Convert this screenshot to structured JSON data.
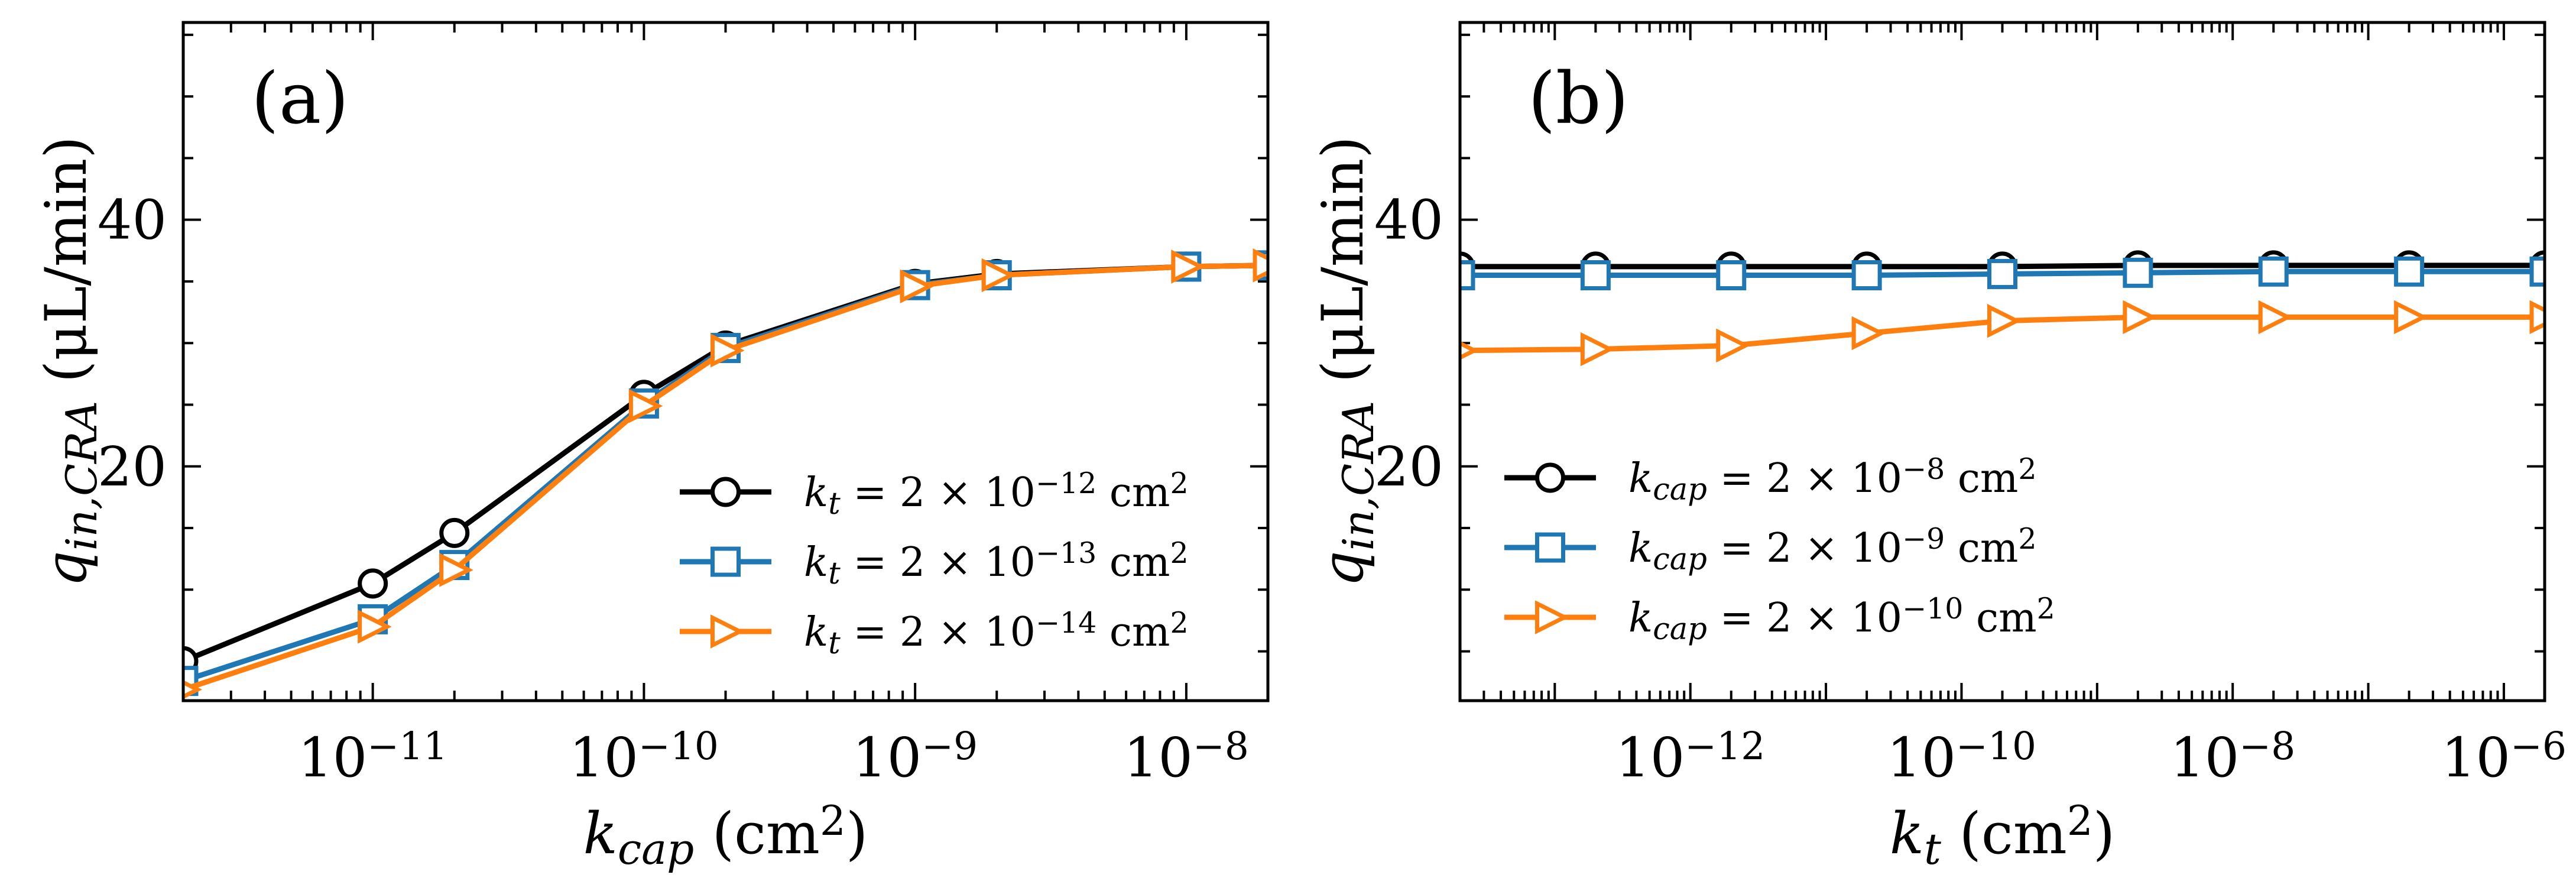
{
  "chart_data": [
    {
      "type": "line",
      "panel_label": "(a)",
      "xlabel": "k_cap (cm²)",
      "ylabel": "q_in,CRA (μL/min)",
      "xscale": "log",
      "xlim": [
        2e-12,
        2e-08
      ],
      "ylim": [
        1,
        56
      ],
      "x_ticks": [
        1e-11,
        1e-10,
        1e-09,
        1e-08
      ],
      "x_tick_labels": [
        "10",
        "10",
        "10",
        "10"
      ],
      "x_tick_exponents": [
        "−11",
        "−10",
        "−9",
        "−8"
      ],
      "y_ticks": [
        20,
        40
      ],
      "y_tick_labels": [
        "20",
        "40"
      ],
      "legend_position": "lower-right",
      "grid": false,
      "series": [
        {
          "name": "k_t = 2 × 10^−12 cm²",
          "label_parts": {
            "var": "k",
            "sub": "t",
            "mid": " = 2 × 10",
            "exp": "−12",
            "unit": " cm",
            "unit_exp": "2"
          },
          "color": "#000000",
          "marker": "circle",
          "x": [
            2e-12,
            1e-11,
            2e-11,
            1e-10,
            2e-10,
            1e-09,
            2e-09,
            1e-08,
            2e-08
          ],
          "values": [
            4.2,
            10.5,
            14.6,
            25.8,
            29.8,
            34.8,
            35.6,
            36.2,
            36.3
          ]
        },
        {
          "name": "k_t = 2 × 10^−13 cm²",
          "label_parts": {
            "var": "k",
            "sub": "t",
            "mid": " = 2 × 10",
            "exp": "−13",
            "unit": " cm",
            "unit_exp": "2"
          },
          "color": "#1f77b4",
          "marker": "square",
          "x": [
            2e-12,
            1e-11,
            2e-11,
            1e-10,
            2e-10,
            1e-09,
            2e-09,
            1e-08,
            2e-08
          ],
          "values": [
            2.6,
            7.6,
            12.0,
            25.1,
            29.6,
            34.7,
            35.5,
            36.2,
            36.3
          ]
        },
        {
          "name": "k_t = 2 × 10^−14 cm²",
          "label_parts": {
            "var": "k",
            "sub": "t",
            "mid": " = 2 × 10",
            "exp": "−14",
            "unit": " cm",
            "unit_exp": "2"
          },
          "color": "#ff7f0e",
          "marker": "triangle-right",
          "x": [
            2e-12,
            1e-11,
            2e-11,
            1e-10,
            2e-10,
            1e-09,
            2e-09,
            1e-08,
            2e-08
          ],
          "values": [
            1.9,
            7.0,
            11.6,
            24.9,
            29.4,
            34.6,
            35.5,
            36.2,
            36.3
          ]
        }
      ]
    },
    {
      "type": "line",
      "panel_label": "(b)",
      "xlabel": "k_t (cm²)",
      "ylabel": "q_in,CRA (μL/min)",
      "xscale": "log",
      "xlim": [
        2e-14,
        2e-06
      ],
      "ylim": [
        1,
        56
      ],
      "x_ticks": [
        1e-12,
        1e-10,
        1e-08,
        1e-06
      ],
      "x_tick_labels": [
        "10",
        "10",
        "10",
        "10"
      ],
      "x_tick_exponents": [
        "−12",
        "−10",
        "−8",
        "−6"
      ],
      "y_ticks": [
        20,
        40
      ],
      "y_tick_labels": [
        "20",
        "40"
      ],
      "legend_position": "lower-left",
      "grid": false,
      "series": [
        {
          "name": "k_cap = 2 × 10^−8 cm²",
          "label_parts": {
            "var": "k",
            "sub": "cap",
            "mid": " = 2 × 10",
            "exp": "−8",
            "unit": " cm",
            "unit_exp": "2"
          },
          "color": "#000000",
          "marker": "circle",
          "x": [
            2e-14,
            2e-13,
            2e-12,
            2e-11,
            2e-10,
            2e-09,
            2e-08,
            2e-07,
            2e-06
          ],
          "values": [
            36.2,
            36.2,
            36.2,
            36.2,
            36.2,
            36.3,
            36.3,
            36.3,
            36.3
          ]
        },
        {
          "name": "k_cap = 2 × 10^−9 cm²",
          "label_parts": {
            "var": "k",
            "sub": "cap",
            "mid": " = 2 × 10",
            "exp": "−9",
            "unit": " cm",
            "unit_exp": "2"
          },
          "color": "#1f77b4",
          "marker": "square",
          "x": [
            2e-14,
            2e-13,
            2e-12,
            2e-11,
            2e-10,
            2e-09,
            2e-08,
            2e-07,
            2e-06
          ],
          "values": [
            35.5,
            35.5,
            35.5,
            35.5,
            35.6,
            35.7,
            35.8,
            35.8,
            35.8
          ]
        },
        {
          "name": "k_cap = 2 × 10^−10 cm²",
          "label_parts": {
            "var": "k",
            "sub": "cap",
            "mid": " = 2 × 10",
            "exp": "−10",
            "unit": " cm",
            "unit_exp": "2"
          },
          "color": "#ff7f0e",
          "marker": "triangle-right",
          "x": [
            2e-14,
            2e-13,
            2e-12,
            2e-11,
            2e-10,
            2e-09,
            2e-08,
            2e-07,
            2e-06
          ],
          "values": [
            29.4,
            29.5,
            29.8,
            30.8,
            31.8,
            32.1,
            32.1,
            32.1,
            32.1
          ]
        }
      ]
    }
  ]
}
